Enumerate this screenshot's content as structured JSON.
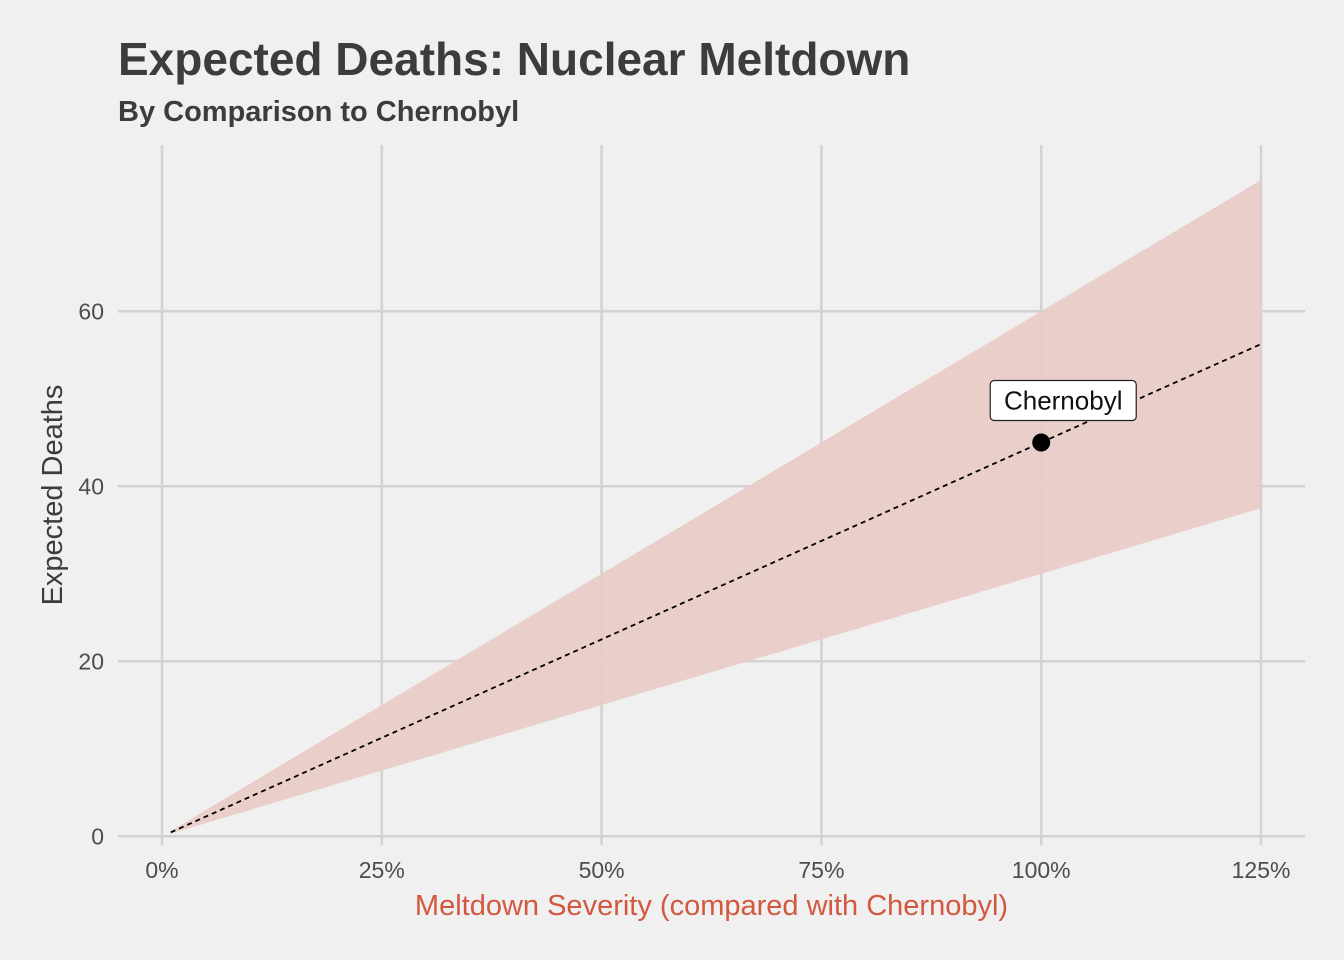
{
  "chart_data": {
    "type": "line",
    "title": "Expected Deaths: Nuclear Meltdown",
    "subtitle": "By Comparison to Chernobyl",
    "xlabel": "Meltdown Severity (compared with Chernobyl)",
    "ylabel": "Expected Deaths",
    "x_ticks": [
      {
        "value": 0,
        "label": "0%"
      },
      {
        "value": 25,
        "label": "25%"
      },
      {
        "value": 50,
        "label": "50%"
      },
      {
        "value": 75,
        "label": "75%"
      },
      {
        "value": 100,
        "label": "100%"
      },
      {
        "value": 125,
        "label": "125%"
      }
    ],
    "y_ticks": [
      {
        "value": 0,
        "label": "0"
      },
      {
        "value": 20,
        "label": "20"
      },
      {
        "value": 40,
        "label": "40"
      },
      {
        "value": 60,
        "label": "60"
      }
    ],
    "xlim": [
      -5,
      130
    ],
    "ylim": [
      -1,
      79
    ],
    "grid": true,
    "ribbon": {
      "x": [
        1,
        125
      ],
      "lower": [
        0.3,
        37.5
      ],
      "upper": [
        0.6,
        75
      ]
    },
    "line": {
      "style": "dashed",
      "x": [
        1,
        125
      ],
      "y": [
        0.45,
        56.25
      ]
    },
    "point": {
      "x": 100,
      "y": 45,
      "label": "Chernobyl"
    },
    "colors": {
      "background": "#f0f0f0",
      "ribbon": "#e8cbc6",
      "xlabel": "#d2583f",
      "text": "#3c3c3c"
    }
  }
}
